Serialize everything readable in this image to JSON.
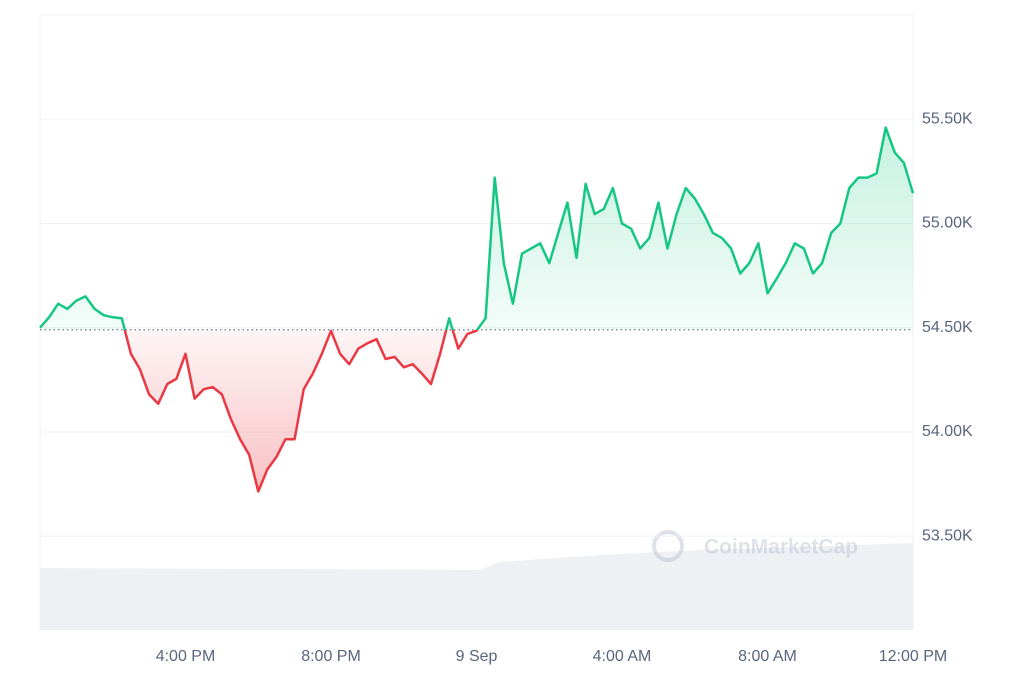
{
  "chart_data": {
    "type": "line",
    "watermark": "CoinMarketCap",
    "x": [
      0,
      0.25,
      0.5,
      0.75,
      1,
      1.25,
      1.5,
      1.75,
      2,
      2.25,
      2.5,
      2.75,
      3,
      3.25,
      3.5,
      3.75,
      4,
      4.25,
      4.5,
      4.75,
      5,
      5.25,
      5.5,
      5.75,
      6,
      6.25,
      6.5,
      6.75,
      7,
      7.25,
      7.5,
      7.75,
      8,
      8.25,
      8.5,
      8.75,
      9,
      9.25,
      9.5,
      9.75,
      10,
      10.25,
      10.5,
      10.75,
      11,
      11.25,
      11.5,
      11.75,
      12,
      12.25,
      12.5,
      12.75,
      13,
      13.25,
      13.5,
      13.75,
      14,
      14.25,
      14.5,
      14.75,
      15,
      15.25,
      15.5,
      15.75,
      16,
      16.25,
      16.5,
      16.75,
      17,
      17.25,
      17.5,
      17.75,
      18,
      18.25,
      18.5,
      18.75,
      19,
      19.25,
      19.5,
      19.75,
      20,
      20.25,
      20.5,
      20.75,
      21,
      21.25,
      21.5,
      21.75,
      22,
      22.25,
      22.5,
      22.75,
      23,
      23.25,
      23.5,
      23.75,
      24
    ],
    "series": [
      {
        "values": [
          54500,
          54550,
          54615,
          54590,
          54630,
          54650,
          54590,
          54560,
          54550,
          54545,
          54375,
          54300,
          54180,
          54135,
          54230,
          54255,
          54375,
          54160,
          54205,
          54215,
          54180,
          54060,
          53965,
          53890,
          53715,
          53820,
          53880,
          53965,
          53965,
          54205,
          54280,
          54375,
          54485,
          54375,
          54325,
          54400,
          54425,
          54445,
          54350,
          54360,
          54310,
          54325,
          54280,
          54230,
          54375,
          54545,
          54400,
          54470,
          54485,
          54545,
          55220,
          54810,
          54615,
          54855,
          54880,
          54905,
          54810,
          54955,
          55100,
          54835,
          55190,
          55045,
          55070,
          55170,
          55000,
          54975,
          54880,
          54930,
          55100,
          54880,
          55045,
          55170,
          55120,
          55045,
          54955,
          54930,
          54880,
          54760,
          54810,
          54905,
          54665,
          54735,
          54810,
          54905,
          54880,
          54760,
          54810,
          54955,
          55000,
          55170,
          55220,
          55220,
          55240,
          55460,
          55340,
          55290,
          55145
        ]
      }
    ],
    "baseline": 54490,
    "up_color": "#16c784",
    "down_color": "#ea3943",
    "xlim": [
      0,
      24
    ],
    "xticks": [
      {
        "value": 4,
        "label": "4:00 PM"
      },
      {
        "value": 8,
        "label": "8:00 PM"
      },
      {
        "value": 12,
        "label": "9 Sep"
      },
      {
        "value": 16,
        "label": "4:00 AM"
      },
      {
        "value": 20,
        "label": "8:00 AM"
      },
      {
        "value": 24,
        "label": "12:00 PM"
      }
    ],
    "ylim": [
      53050,
      56000
    ],
    "yticks": [
      {
        "value": 53500,
        "label": "53.50K"
      },
      {
        "value": 54000,
        "label": "54.00K"
      },
      {
        "value": 54500,
        "label": "54.50K"
      },
      {
        "value": 55000,
        "label": "55.00K"
      },
      {
        "value": 55500,
        "label": "55.50K"
      }
    ],
    "grid": true
  }
}
